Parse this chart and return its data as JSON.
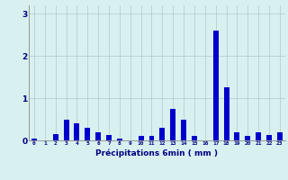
{
  "hours": [
    0,
    1,
    2,
    3,
    4,
    5,
    6,
    7,
    8,
    9,
    10,
    11,
    12,
    13,
    14,
    15,
    16,
    17,
    18,
    19,
    20,
    21,
    22,
    23
  ],
  "values": [
    0.05,
    0.0,
    0.15,
    0.5,
    0.4,
    0.3,
    0.2,
    0.12,
    0.05,
    0.0,
    0.1,
    0.1,
    0.3,
    0.75,
    0.5,
    0.1,
    0.0,
    2.6,
    1.25,
    0.2,
    0.1,
    0.2,
    0.12,
    0.2
  ],
  "bar_color": "#0000cc",
  "bg_color": "#d8f0f0",
  "grid_color": "#b0c8c8",
  "text_color": "#000080",
  "xlabel": "Précipitations 6min ( mm )",
  "ylim": [
    0,
    3.2
  ],
  "yticks": [
    0,
    1,
    2,
    3
  ],
  "xlim": [
    -0.5,
    23.5
  ]
}
